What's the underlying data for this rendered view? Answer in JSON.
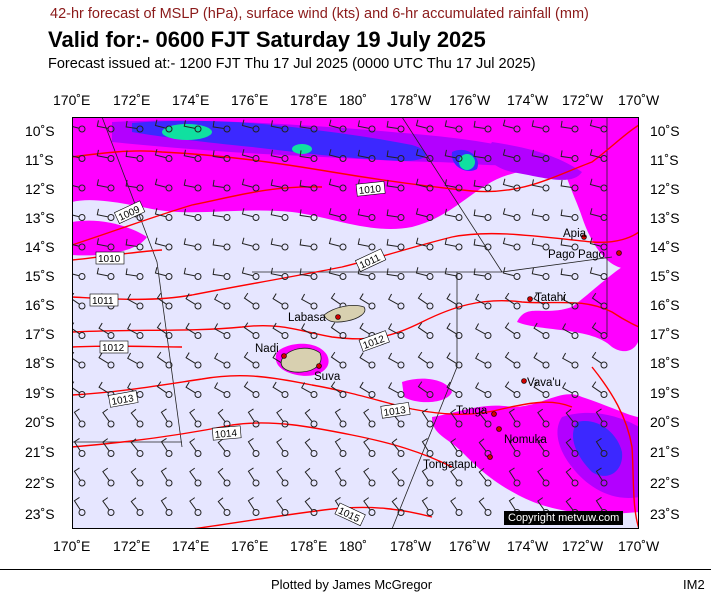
{
  "header": {
    "subtitle": "42-hr forecast of MSLP (hPa), surface wind (kts) and 6-hr accumulated rainfall (mm)",
    "title": "Valid for:- 0600 FJT Saturday 19 July 2025",
    "issued": "Forecast issued at:- 1200 FJT Thu 17 Jul 2025 (0000 UTC Thu 17 Jul 2025)"
  },
  "axes": {
    "longitudes": [
      "170˚E",
      "172˚E",
      "174˚E",
      "176˚E",
      "178˚E",
      "180˚",
      "178˚W",
      "176˚W",
      "174˚W",
      "172˚W",
      "170˚W"
    ],
    "latitudes": [
      "10˚S",
      "11˚S",
      "12˚S",
      "13˚S",
      "14˚S",
      "15˚S",
      "16˚S",
      "17˚S",
      "18˚S",
      "19˚S",
      "20˚S",
      "21˚S",
      "22˚S",
      "23˚S"
    ]
  },
  "isobar_labels": [
    "1009",
    "1010",
    "1010",
    "1011",
    "1011",
    "1012",
    "1012",
    "1013",
    "1013",
    "1014",
    "1015"
  ],
  "places": [
    "Labasa",
    "Nadi",
    "Suva",
    "Apia",
    "Pago Pago",
    "Tatahi",
    "Vava'u",
    "Tonga",
    "Nomuka",
    "Tongatapu"
  ],
  "colors": {
    "background": "#e6e6ff",
    "rain_light": "#ff00ff",
    "rain_medium": "#b300ff",
    "rain_heavy": "#3c28ff",
    "rain_extreme": "#10e0a0",
    "isobar": "#ff0000",
    "subtitle": "#8b1a1a"
  },
  "copyright": "Copyright metvuw.com",
  "footer": "Plotted by James McGregor",
  "image_id": "IM2"
}
